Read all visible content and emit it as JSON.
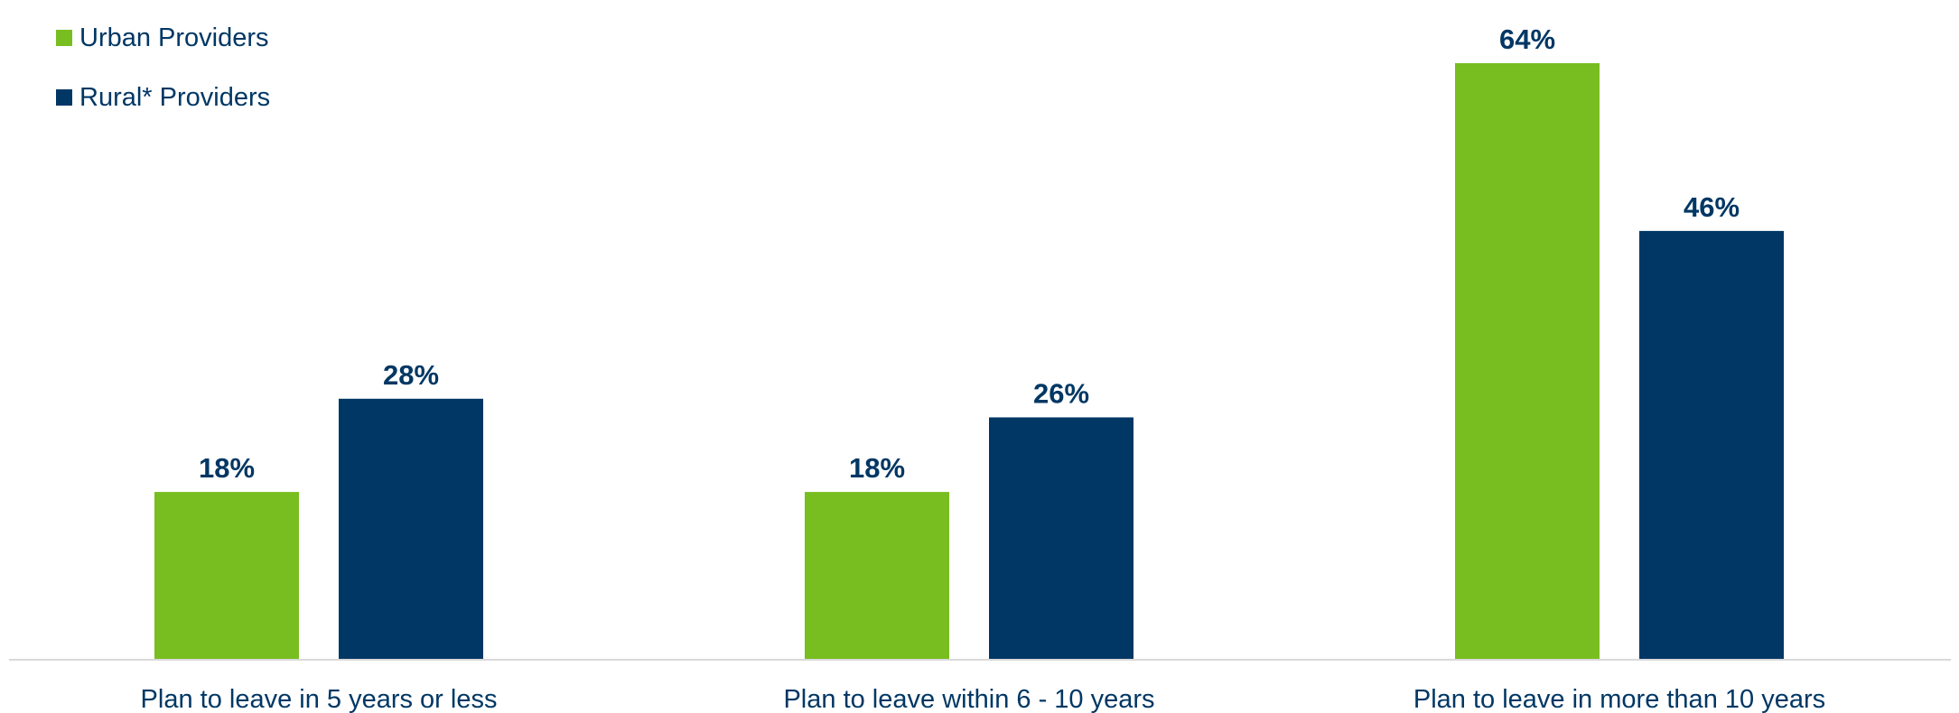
{
  "chart_data": {
    "type": "bar",
    "categories": [
      "Plan to leave in 5 years or less",
      "Plan to leave within 6 - 10 years",
      "Plan to leave in more than 10 years"
    ],
    "series": [
      {
        "name": "Urban Providers",
        "values": [
          18,
          18,
          64
        ],
        "labels": [
          "18%",
          "18%",
          "64%"
        ],
        "color": "#78BE20"
      },
      {
        "name": "Rural* Providers",
        "values": [
          28,
          26,
          46
        ],
        "labels": [
          "28%",
          "26%",
          "46%"
        ],
        "color": "#003764"
      }
    ],
    "ylim": [
      0,
      70
    ],
    "grid": false,
    "legend_position": "top-left",
    "axis_color": "#D9D9D9",
    "label_color": "#003764"
  }
}
